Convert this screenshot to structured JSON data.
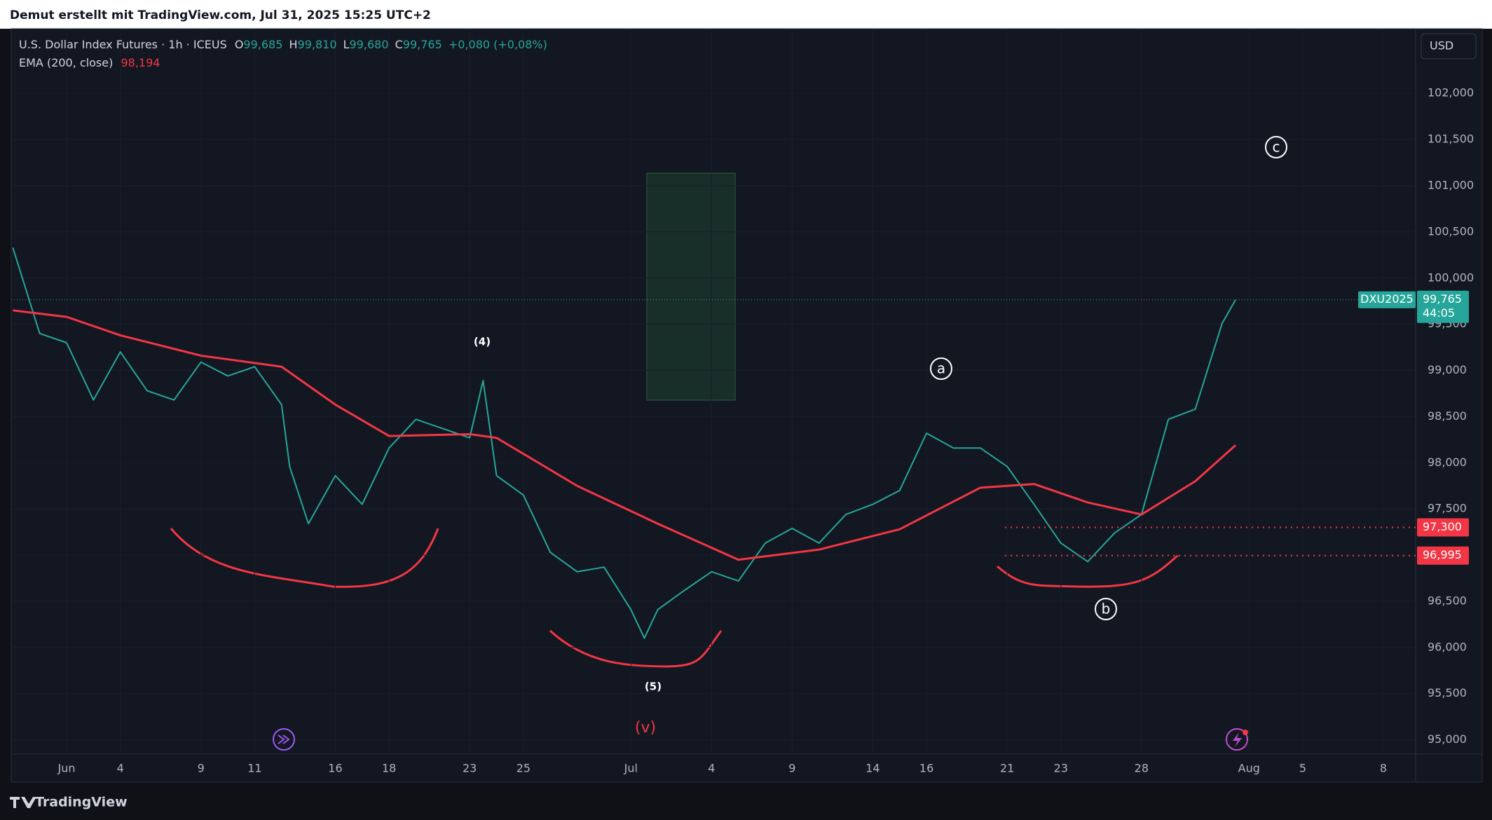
{
  "header": {
    "text": "Demut erstellt mit TradingView.com, Jul 31, 2025 15:25 UTC+2"
  },
  "legend": {
    "symbol": "U.S. Dollar Index Futures · 1h · ICEUS",
    "ohlc": [
      {
        "key": "O",
        "value": "99,685"
      },
      {
        "key": "H",
        "value": "99,810"
      },
      {
        "key": "L",
        "value": "99,680"
      },
      {
        "key": "C",
        "value": "99,765"
      }
    ],
    "change": "+0,080 (+0,08%)",
    "indicator": "EMA (200, close)",
    "indicator_value": "98,194"
  },
  "currency_button": "USD",
  "footer": {
    "brand": "TradingView"
  },
  "chart_data": {
    "type": "line",
    "xlim": [
      -2.06,
      50.2
    ],
    "ylim": [
      94845,
      102700
    ],
    "xticks": [
      {
        "value": 0,
        "label": "Jun"
      },
      {
        "value": 2,
        "label": "4"
      },
      {
        "value": 5,
        "label": "9"
      },
      {
        "value": 7,
        "label": "11"
      },
      {
        "value": 10,
        "label": "16"
      },
      {
        "value": 12,
        "label": "18"
      },
      {
        "value": 15,
        "label": "23"
      },
      {
        "value": 17,
        "label": "25"
      },
      {
        "value": 21,
        "label": "Jul"
      },
      {
        "value": 24,
        "label": "4"
      },
      {
        "value": 27,
        "label": "9"
      },
      {
        "value": 30,
        "label": "14"
      },
      {
        "value": 32,
        "label": "16"
      },
      {
        "value": 35,
        "label": "21"
      },
      {
        "value": 37,
        "label": "23"
      },
      {
        "value": 40,
        "label": "28"
      },
      {
        "value": 44,
        "label": "Aug"
      },
      {
        "value": 46,
        "label": "5"
      },
      {
        "value": 49,
        "label": "8"
      }
    ],
    "yticks": [
      {
        "value": 95000,
        "label": "95,000"
      },
      {
        "value": 95500,
        "label": "95,500"
      },
      {
        "value": 96000,
        "label": "96,000"
      },
      {
        "value": 96500,
        "label": "96,500"
      },
      {
        "value": 97000,
        "label": "97,000"
      },
      {
        "value": 97500,
        "label": "97,500"
      },
      {
        "value": 98000,
        "label": "98,000"
      },
      {
        "value": 98500,
        "label": "98,500"
      },
      {
        "value": 99000,
        "label": "99,000"
      },
      {
        "value": 99500,
        "label": "99,500"
      },
      {
        "value": 100000,
        "label": "100,000"
      },
      {
        "value": 100500,
        "label": "100,500"
      },
      {
        "value": 101000,
        "label": "101,000"
      },
      {
        "value": 101500,
        "label": "101,500"
      },
      {
        "value": 102000,
        "label": "102,000"
      }
    ],
    "series": [
      {
        "name": "U.S. Dollar Index Futures",
        "color": "#26a69a",
        "x": [
          -2,
          -1,
          0,
          1,
          2,
          3,
          4,
          5,
          6,
          7,
          8,
          8.3,
          9,
          10,
          11,
          12,
          13,
          14,
          15,
          15.5,
          16,
          17,
          18,
          19,
          20,
          21,
          21.5,
          22,
          23,
          24,
          25,
          26,
          27,
          28,
          29,
          30,
          31,
          32,
          33,
          34,
          35,
          36,
          37,
          38,
          39,
          40,
          41,
          42,
          43,
          43.5
        ],
        "values": [
          100330,
          99400,
          99300,
          98680,
          99200,
          98780,
          98680,
          99090,
          98940,
          99040,
          98630,
          97960,
          97340,
          97860,
          97550,
          98160,
          98470,
          98370,
          98270,
          98890,
          97860,
          97650,
          97030,
          96820,
          96870,
          96410,
          96100,
          96410,
          96620,
          96820,
          96720,
          97130,
          97290,
          97130,
          97440,
          97550,
          97700,
          98320,
          98160,
          98160,
          97960,
          97550,
          97130,
          96930,
          97240,
          97440,
          98470,
          98580,
          99510,
          99765
        ]
      },
      {
        "name": "EMA (200, close)",
        "color": "#f23645",
        "x": [
          -2,
          0,
          2,
          5,
          8,
          10,
          12,
          15,
          16,
          19,
          22,
          25,
          28,
          31,
          34,
          36,
          38,
          40,
          42,
          43.5
        ],
        "values": [
          99650,
          99580,
          99380,
          99160,
          99040,
          98630,
          98290,
          98310,
          98270,
          97750,
          97340,
          96950,
          97060,
          97280,
          97730,
          97770,
          97570,
          97440,
          97800,
          98190
        ]
      }
    ],
    "current_price": {
      "value": 99765,
      "label": "99,765",
      "countdown": "44:05",
      "symbol": "DXU2025"
    },
    "levels": [
      {
        "value": 97300,
        "label": "97,300"
      },
      {
        "value": 96995,
        "label": "96,995"
      }
    ],
    "annotations": [
      "(4)",
      "(5)",
      "(v)",
      "a",
      "b",
      "c"
    ]
  }
}
